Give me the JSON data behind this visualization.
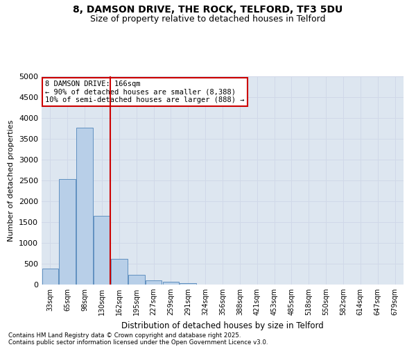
{
  "title_line1": "8, DAMSON DRIVE, THE ROCK, TELFORD, TF3 5DU",
  "title_line2": "Size of property relative to detached houses in Telford",
  "xlabel": "Distribution of detached houses by size in Telford",
  "ylabel": "Number of detached properties",
  "categories": [
    "33sqm",
    "65sqm",
    "98sqm",
    "130sqm",
    "162sqm",
    "195sqm",
    "227sqm",
    "259sqm",
    "291sqm",
    "324sqm",
    "356sqm",
    "388sqm",
    "421sqm",
    "453sqm",
    "485sqm",
    "518sqm",
    "550sqm",
    "582sqm",
    "614sqm",
    "647sqm",
    "679sqm"
  ],
  "values": [
    380,
    2540,
    3760,
    1650,
    620,
    240,
    105,
    65,
    40,
    0,
    0,
    0,
    0,
    0,
    0,
    0,
    0,
    0,
    0,
    0,
    0
  ],
  "bar_color": "#b8cfe8",
  "bar_edgecolor": "#6090c0",
  "vline_x_index": 3.5,
  "vline_color": "#cc0000",
  "annotation_text": "8 DAMSON DRIVE: 166sqm\n← 90% of detached houses are smaller (8,388)\n10% of semi-detached houses are larger (888) →",
  "annotation_box_edgecolor": "#cc0000",
  "annotation_box_facecolor": "#ffffff",
  "ylim": [
    0,
    5000
  ],
  "yticks": [
    0,
    500,
    1000,
    1500,
    2000,
    2500,
    3000,
    3500,
    4000,
    4500,
    5000
  ],
  "grid_color": "#d0d8e8",
  "bg_color": "#dde6f0",
  "footer_line1": "Contains HM Land Registry data © Crown copyright and database right 2025.",
  "footer_line2": "Contains public sector information licensed under the Open Government Licence v3.0."
}
